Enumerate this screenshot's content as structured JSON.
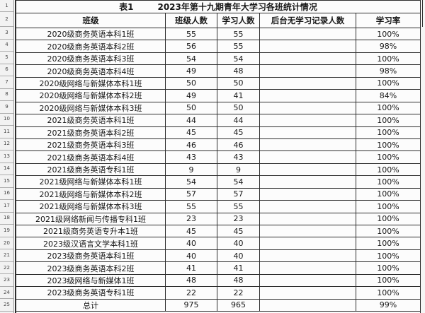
{
  "table": {
    "title_label": "表1",
    "title": "2023年第十九期青年大学习各班统计情况",
    "columns": [
      "班级",
      "班级人数",
      "学习人数",
      "后台无学习记录人数",
      "学习率"
    ],
    "rows": [
      {
        "name": "2020级商务英语本科1班",
        "size": "55",
        "studied": "55",
        "no_record": "",
        "rate": "100%"
      },
      {
        "name": "2020级商务英语本科2班",
        "size": "56",
        "studied": "55",
        "no_record": "",
        "rate": "98%"
      },
      {
        "name": "2020级商务英语本科3班",
        "size": "54",
        "studied": "54",
        "no_record": "",
        "rate": "100%"
      },
      {
        "name": "2020级商务英语本科4班",
        "size": "49",
        "studied": "48",
        "no_record": "",
        "rate": "98%"
      },
      {
        "name": "2020级网络与新媒体本科1班",
        "size": "50",
        "studied": "50",
        "no_record": "",
        "rate": "100%"
      },
      {
        "name": "2020级网络与新媒体本科2班",
        "size": "49",
        "studied": "41",
        "no_record": "",
        "rate": "84%"
      },
      {
        "name": "2020级网络与新媒体本科3班",
        "size": "50",
        "studied": "50",
        "no_record": "",
        "rate": "100%"
      },
      {
        "name": "2021级商务英语本科1班",
        "size": "44",
        "studied": "44",
        "no_record": "",
        "rate": "100%"
      },
      {
        "name": "2021级商务英语本科2班",
        "size": "45",
        "studied": "45",
        "no_record": "",
        "rate": "100%"
      },
      {
        "name": "2021级商务英语本科3班",
        "size": "46",
        "studied": "46",
        "no_record": "",
        "rate": "100%"
      },
      {
        "name": "2021级商务英语本科4班",
        "size": "43",
        "studied": "43",
        "no_record": "",
        "rate": "100%"
      },
      {
        "name": "2021级商务英语专科1班",
        "size": "9",
        "studied": "9",
        "no_record": "",
        "rate": "100%"
      },
      {
        "name": "2021级网络与新媒体本科1班",
        "size": "54",
        "studied": "54",
        "no_record": "",
        "rate": "100%"
      },
      {
        "name": "2021级网络与新媒体本科2班",
        "size": "57",
        "studied": "57",
        "no_record": "",
        "rate": "100%"
      },
      {
        "name": "2021级网络与新媒体本科3班",
        "size": "55",
        "studied": "55",
        "no_record": "",
        "rate": "100%"
      },
      {
        "name": "2021级网络新闻与传播专科1班",
        "size": "23",
        "studied": "23",
        "no_record": "",
        "rate": "100%"
      },
      {
        "name": "2021级商务英语专升本1班",
        "size": "45",
        "studied": "45",
        "no_record": "",
        "rate": "100%"
      },
      {
        "name": "2023级汉语言文学本科1班",
        "size": "40",
        "studied": "40",
        "no_record": "",
        "rate": "100%"
      },
      {
        "name": "2023级商务英语本科1班",
        "size": "40",
        "studied": "40",
        "no_record": "",
        "rate": "100%"
      },
      {
        "name": "2023级商务英语本科2班",
        "size": "41",
        "studied": "41",
        "no_record": "",
        "rate": "100%"
      },
      {
        "name": "2023级网络与新媒体1班",
        "size": "48",
        "studied": "48",
        "no_record": "",
        "rate": "100%"
      },
      {
        "name": "2023级商务英语专科1班",
        "size": "22",
        "studied": "22",
        "no_record": "",
        "rate": "100%"
      }
    ],
    "total": {
      "name": "总计",
      "size": "975",
      "studied": "965",
      "no_record": "",
      "rate": "99%"
    }
  },
  "gutter": {
    "row_numbers": [
      "1",
      "2",
      "3",
      "4",
      "5",
      "6",
      "7",
      "8",
      "9",
      "10",
      "11",
      "12",
      "13",
      "14",
      "15",
      "16",
      "17",
      "18",
      "19",
      "20",
      "21",
      "22",
      "23",
      "24",
      "25"
    ]
  },
  "colors": {
    "grid_border": "#2e2e2e",
    "gutter_bg": "#f2f2f2",
    "cell_bg": "#fcfcfc",
    "page_bg": "#f5f5f5"
  }
}
